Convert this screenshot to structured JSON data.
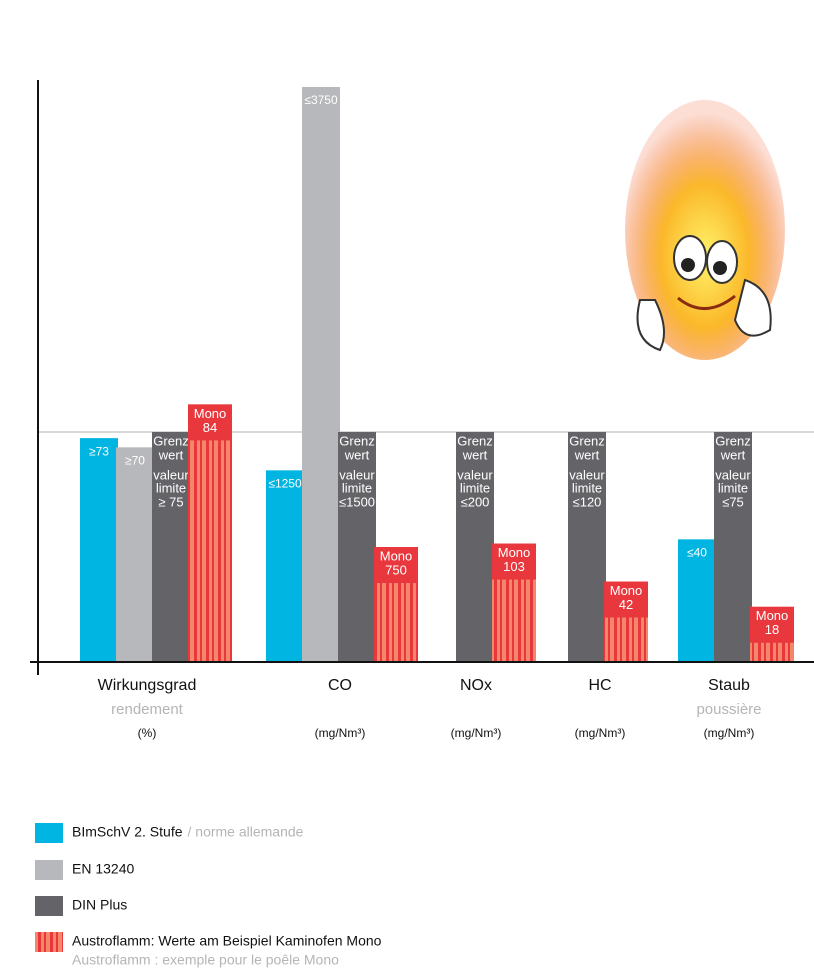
{
  "chart_data": {
    "type": "bar",
    "categories": [
      "Wirkungsgrad",
      "CO",
      "NOx",
      "HC",
      "Staub"
    ],
    "subcategories": [
      "rendement",
      null,
      null,
      null,
      "poussière"
    ],
    "units": [
      "(%)",
      "(mg/Nm³)",
      "(mg/Nm³)",
      "(mg/Nm³)",
      "(mg/Nm³)"
    ],
    "series": [
      {
        "name": "BImSchV 2. Stufe",
        "legend_note": "/ norme allemande",
        "color": "#00b5e2",
        "values": [
          73,
          1250,
          null,
          null,
          40
        ],
        "value_labels": [
          "≥73",
          "≤1250",
          null,
          null,
          "≤40"
        ]
      },
      {
        "name": "EN 13240",
        "color": "#b7b8bb",
        "values": [
          70,
          3750,
          null,
          null,
          null
        ],
        "value_labels": [
          "≥70",
          "≤3750",
          null,
          null,
          null
        ]
      },
      {
        "name": "DIN Plus",
        "color": "#646468",
        "label_prefix": [
          "Grenz",
          "wert",
          "valeur",
          "limite"
        ],
        "values": [
          75,
          1500,
          200,
          120,
          75
        ],
        "value_labels": [
          "≥ 75",
          "≤1500",
          "≤200",
          "≤120",
          "≤75"
        ]
      },
      {
        "name": "Austroflamm: Werte am Beispiel Kaminofen Mono",
        "legend_note": "Austroflamm : exemple pour le poêle Mono",
        "color": "#e8383d",
        "label_prefix": [
          "Mono"
        ],
        "values": [
          84,
          750,
          103,
          42,
          18
        ]
      }
    ]
  }
}
